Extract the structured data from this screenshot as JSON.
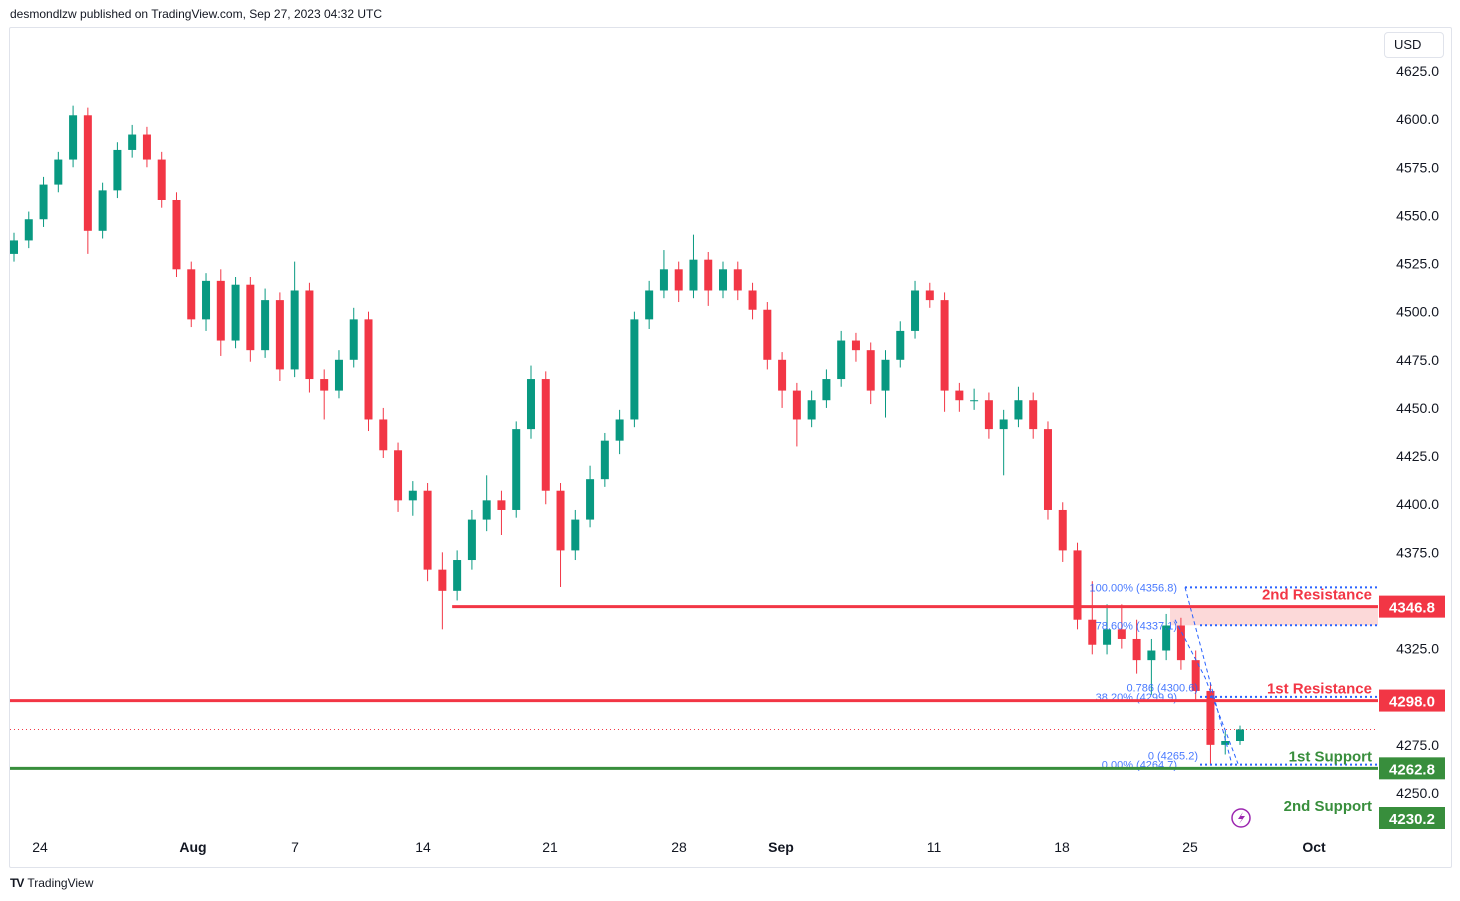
{
  "header": {
    "published": "desmondlzw published on TradingView.com, Sep 27, 2023 04:32 UTC"
  },
  "currency": "USD",
  "footer": {
    "brand": "TradingView",
    "logo_mark": "TV"
  },
  "colors": {
    "up": "#089981",
    "down": "#f23645",
    "resistance": "#f23645",
    "support": "#388e3c",
    "fib": "#2962ff",
    "zone": "#fcd9d9",
    "alert_icon": "#9c27b0"
  },
  "chart_data": {
    "type": "candlestick",
    "ylim": [
      4240,
      4640
    ],
    "y_ticks": [
      "4625.0",
      "4600.0",
      "4575.0",
      "4550.0",
      "4525.0",
      "4500.0",
      "4475.0",
      "4450.0",
      "4425.0",
      "4400.0",
      "4375.0",
      "4325.0",
      "4275.0",
      "4250.0"
    ],
    "x_ticks": [
      "24",
      "Aug",
      "7",
      "14",
      "21",
      "28",
      "Sep",
      "11",
      "18",
      "25",
      "Oct"
    ],
    "candles": [
      [
        4530,
        4541,
        4526,
        4537
      ],
      [
        4537,
        4552,
        4533,
        4548
      ],
      [
        4548,
        4570,
        4544,
        4566
      ],
      [
        4566,
        4583,
        4562,
        4579
      ],
      [
        4579,
        4607,
        4575,
        4602
      ],
      [
        4602,
        4606,
        4530,
        4542
      ],
      [
        4542,
        4567,
        4538,
        4563
      ],
      [
        4563,
        4588,
        4559,
        4584
      ],
      [
        4584,
        4597,
        4580,
        4592
      ],
      [
        4592,
        4596,
        4575,
        4579
      ],
      [
        4579,
        4583,
        4554,
        4558
      ],
      [
        4558,
        4562,
        4518,
        4522
      ],
      [
        4522,
        4526,
        4492,
        4496
      ],
      [
        4496,
        4520,
        4490,
        4516
      ],
      [
        4516,
        4522,
        4477,
        4485
      ],
      [
        4485,
        4518,
        4481,
        4514
      ],
      [
        4514,
        4518,
        4474,
        4480
      ],
      [
        4480,
        4512,
        4476,
        4506
      ],
      [
        4506,
        4510,
        4464,
        4470
      ],
      [
        4470,
        4526,
        4466,
        4511
      ],
      [
        4511,
        4515,
        4458,
        4465
      ],
      [
        4465,
        4470,
        4444,
        4459
      ],
      [
        4459,
        4480,
        4455,
        4475
      ],
      [
        4475,
        4502,
        4471,
        4496
      ],
      [
        4496,
        4500,
        4438,
        4444
      ],
      [
        4444,
        4450,
        4424,
        4428
      ],
      [
        4428,
        4432,
        4396,
        4402
      ],
      [
        4402,
        4412,
        4394,
        4407
      ],
      [
        4407,
        4411,
        4360,
        4366
      ],
      [
        4366,
        4375,
        4335,
        4355
      ],
      [
        4355,
        4376,
        4350,
        4371
      ],
      [
        4371,
        4397,
        4366,
        4392
      ],
      [
        4392,
        4415,
        4386,
        4402
      ],
      [
        4402,
        4407,
        4384,
        4397
      ],
      [
        4397,
        4443,
        4393,
        4439
      ],
      [
        4439,
        4472,
        4434,
        4465
      ],
      [
        4465,
        4469,
        4400,
        4407
      ],
      [
        4407,
        4411,
        4357,
        4376
      ],
      [
        4376,
        4397,
        4371,
        4392
      ],
      [
        4392,
        4420,
        4388,
        4413
      ],
      [
        4413,
        4437,
        4409,
        4433
      ],
      [
        4433,
        4449,
        4426,
        4444
      ],
      [
        4444,
        4500,
        4440,
        4496
      ],
      [
        4496,
        4516,
        4491,
        4511
      ],
      [
        4511,
        4532,
        4507,
        4522
      ],
      [
        4522,
        4526,
        4505,
        4511
      ],
      [
        4511,
        4540,
        4507,
        4527
      ],
      [
        4527,
        4531,
        4503,
        4511
      ],
      [
        4511,
        4526,
        4507,
        4522
      ],
      [
        4522,
        4526,
        4506,
        4511
      ],
      [
        4511,
        4515,
        4496,
        4501
      ],
      [
        4501,
        4505,
        4470,
        4475
      ],
      [
        4475,
        4479,
        4450,
        4459
      ],
      [
        4459,
        4463,
        4430,
        4444
      ],
      [
        4444,
        4459,
        4440,
        4454
      ],
      [
        4454,
        4470,
        4450,
        4465
      ],
      [
        4465,
        4490,
        4461,
        4485
      ],
      [
        4485,
        4489,
        4474,
        4480
      ],
      [
        4480,
        4484,
        4452,
        4459
      ],
      [
        4459,
        4480,
        4445,
        4475
      ],
      [
        4475,
        4495,
        4471,
        4490
      ],
      [
        4490,
        4516,
        4486,
        4511
      ],
      [
        4511,
        4515,
        4502,
        4506
      ],
      [
        4506,
        4510,
        4448,
        4459
      ],
      [
        4459,
        4463,
        4448,
        4454
      ],
      [
        4454,
        4460,
        4449,
        4454
      ],
      [
        4454,
        4458,
        4434,
        4439
      ],
      [
        4439,
        4449,
        4415,
        4444
      ],
      [
        4444,
        4461,
        4440,
        4454
      ],
      [
        4454,
        4458,
        4434,
        4439
      ],
      [
        4439,
        4443,
        4392,
        4397
      ],
      [
        4397,
        4401,
        4370,
        4376
      ],
      [
        4376,
        4380,
        4335,
        4340
      ],
      [
        4340,
        4360,
        4322,
        4327
      ],
      [
        4327,
        4348,
        4322,
        4335
      ],
      [
        4335,
        4348,
        4325,
        4330
      ],
      [
        4330,
        4340,
        4312,
        4319
      ],
      [
        4319,
        4330,
        4301,
        4324
      ],
      [
        4324,
        4343,
        4319,
        4337
      ],
      [
        4337,
        4341,
        4314,
        4319
      ],
      [
        4319,
        4324,
        4298,
        4303
      ],
      [
        4303,
        4307,
        4265,
        4275
      ],
      [
        4275,
        4282,
        4270,
        4277
      ],
      [
        4277,
        4285,
        4275,
        4283
      ]
    ],
    "current_price": 4283,
    "levels": [
      {
        "name": "2nd Resistance",
        "value": "4346.8",
        "kind": "resistance",
        "line": true,
        "from_candle": 30
      },
      {
        "name": "1st Resistance",
        "value": "4298.0",
        "kind": "resistance",
        "line": true,
        "from_candle": 0
      },
      {
        "name": "1st Support",
        "value": "4262.8",
        "kind": "support",
        "line": true,
        "from_candle": 0
      },
      {
        "name": "2nd Support",
        "value": "4230.2",
        "kind": "support",
        "line": false,
        "from_candle": 0
      }
    ],
    "resistance_zone": [
      4337.1,
      4346.8
    ],
    "fib_levels": [
      {
        "label": "100.00% (4356.8)",
        "value": 4356.8
      },
      {
        "label": "78.60% (4337.1)",
        "value": 4337.1
      },
      {
        "label": "38.20% (4299.9)",
        "value": 4299.9
      },
      {
        "label": "0.00% (4264.7)",
        "value": 4264.7
      }
    ],
    "fib_extra_labels": [
      {
        "label": "0.786 (4300.6)",
        "value": 4300.6
      },
      {
        "label": "0 (4265.2)",
        "value": 4265.2
      }
    ]
  }
}
